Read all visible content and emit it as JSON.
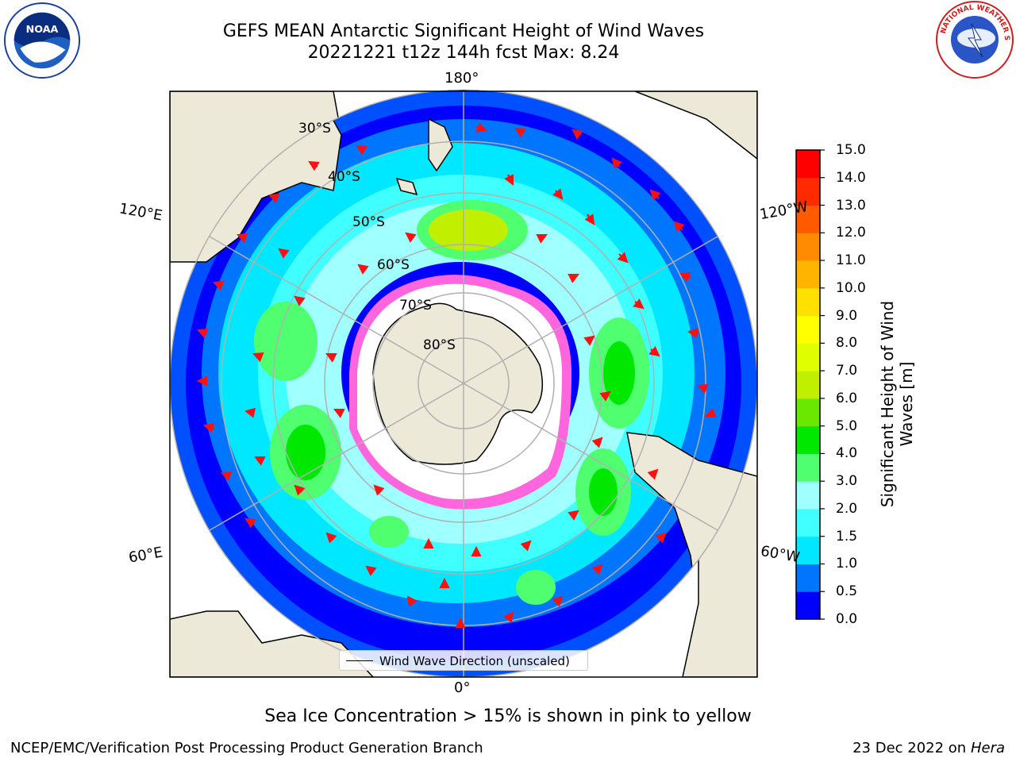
{
  "title": {
    "line1": "GEFS MEAN Antarctic Significant Height of Wind Waves",
    "line2": "20221221 t12z 144h fcst   Max: 8.24"
  },
  "logos": {
    "left": "NOAA",
    "right": "NATIONAL WEATHER SERVICE"
  },
  "map": {
    "projection": "south-polar-stereographic",
    "longitude_labels": {
      "top": "180°",
      "bottom": "0°",
      "upper_left": "120°E",
      "lower_left": "60°E",
      "upper_right": "120°W",
      "lower_right": "60°W"
    },
    "latitude_labels": [
      "30°S",
      "40°S",
      "50°S",
      "60°S",
      "70°S",
      "80°S"
    ],
    "legend": "Wind Wave Direction (unscaled)",
    "colors": {
      "land": "#ede9d8",
      "arrows": "#ff1010",
      "sea_ice": "#ff66dd",
      "graticule": "#b0b0b0"
    }
  },
  "colorbar": {
    "label": "Significant Height of Wind Waves [m]",
    "label_line1": "Significant Height of Wind",
    "label_line2": "Waves [m]",
    "ticks": [
      "0.0",
      "0.5",
      "1.0",
      "1.5",
      "2.0",
      "3.0",
      "4.0",
      "5.0",
      "6.0",
      "7.0",
      "8.0",
      "9.0",
      "10.0",
      "11.0",
      "12.0",
      "13.0",
      "14.0",
      "15.0"
    ],
    "colors": [
      "#0000ff",
      "#0076ff",
      "#00e8ff",
      "#40ffff",
      "#a0ffff",
      "#50ff70",
      "#00e800",
      "#6ae800",
      "#c0f000",
      "#e0ff00",
      "#ffff00",
      "#ffe000",
      "#ffb400",
      "#ff8c00",
      "#ff5a00",
      "#ff2a00",
      "#ff0000"
    ]
  },
  "footer": {
    "note": "Sea Ice Concentration > 15% is shown in pink to yellow",
    "left": "NCEP/EMC/Verification Post Processing Product Generation Branch",
    "right_date": "23 Dec 2022 on",
    "right_host": "Hera"
  }
}
